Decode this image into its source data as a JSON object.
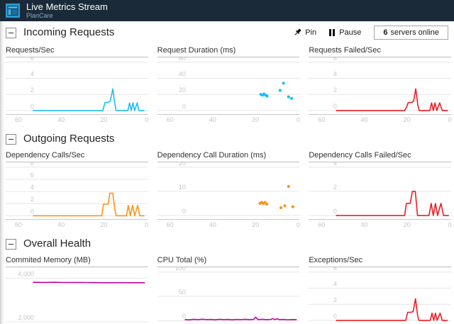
{
  "header": {
    "title": "Live Metrics Stream",
    "subtitle": "PlanCare"
  },
  "toolbar": {
    "pin_label": "Pin",
    "pause_label": "Pause",
    "servers_count": "6",
    "servers_label": "servers online"
  },
  "sections": [
    {
      "title": "Incoming Requests"
    },
    {
      "title": "Outgoing Requests"
    },
    {
      "title": "Overall Health"
    }
  ],
  "colors": {
    "cyan": "#1ebdf0",
    "red": "#eb1c24",
    "orange": "#ff9118",
    "magenta": "#bc00a0",
    "header_bg": "#1b2a38",
    "grid": "#e6e6e6",
    "axis": "#c9c9c9",
    "tick_text": "#c4c4c4"
  },
  "chart_data": [
    {
      "id": "requests-sec",
      "title": "Requests/Sec",
      "type": "line",
      "color": "#1ebdf0",
      "ylim": [
        -0.45,
        6.6
      ],
      "yticks": [
        [
          0,
          "0"
        ],
        [
          2,
          "2"
        ],
        [
          4,
          "4"
        ],
        [
          6,
          "6"
        ]
      ],
      "xticks": [
        60,
        40,
        20,
        0
      ],
      "points": [
        [
          53,
          0
        ],
        [
          20.5,
          0
        ],
        [
          19.5,
          1
        ],
        [
          18,
          1
        ],
        [
          17,
          1.15
        ],
        [
          15.8,
          2.7
        ],
        [
          15,
          1
        ],
        [
          14.3,
          0
        ],
        [
          8.8,
          0
        ],
        [
          8,
          0.95
        ],
        [
          7.2,
          0
        ],
        [
          6.4,
          0.95
        ],
        [
          5.6,
          0
        ],
        [
          4.4,
          0.95
        ],
        [
          3.6,
          0
        ],
        [
          1.2,
          0
        ]
      ]
    },
    {
      "id": "request-duration",
      "title": "Request Duration (ms)",
      "type": "scatter",
      "color": "#1ebdf0",
      "ylim": [
        -4.5,
        66
      ],
      "yticks": [
        [
          0,
          "0"
        ],
        [
          20,
          "20"
        ],
        [
          40,
          "40"
        ],
        [
          60,
          "60"
        ]
      ],
      "xticks": [
        60,
        40,
        20,
        0
      ],
      "points": [
        [
          17.6,
          20
        ],
        [
          16.8,
          19
        ],
        [
          16.1,
          20.5
        ],
        [
          15.3,
          19
        ],
        [
          14.7,
          18
        ],
        [
          8.6,
          25
        ],
        [
          7,
          34
        ],
        [
          4.6,
          17
        ],
        [
          3.2,
          15
        ]
      ]
    },
    {
      "id": "requests-failed-sec",
      "title": "Requests Failed/Sec",
      "type": "line",
      "color": "#eb1c24",
      "ylim": [
        -0.45,
        6.6
      ],
      "yticks": [
        [
          0,
          "0"
        ],
        [
          2,
          "2"
        ],
        [
          4,
          "4"
        ],
        [
          6,
          "6"
        ]
      ],
      "xticks": [
        60,
        40,
        20,
        0
      ],
      "points": [
        [
          53,
          0
        ],
        [
          21,
          0
        ],
        [
          20,
          0.5
        ],
        [
          19.3,
          1
        ],
        [
          17.8,
          1
        ],
        [
          16.8,
          1.15
        ],
        [
          15.8,
          2.7
        ],
        [
          14.8,
          0.6
        ],
        [
          14.2,
          0
        ],
        [
          9.2,
          0
        ],
        [
          8.4,
          0.95
        ],
        [
          7.6,
          0
        ],
        [
          6.8,
          0.95
        ],
        [
          6,
          0
        ],
        [
          4.6,
          0.95
        ],
        [
          3.4,
          0
        ],
        [
          1,
          0
        ]
      ]
    },
    {
      "id": "dependency-calls-sec",
      "title": "Dependency Calls/Sec",
      "type": "line",
      "color": "#ff9118",
      "ylim": [
        -0.55,
        8.8
      ],
      "yticks": [
        [
          0,
          "0"
        ],
        [
          2,
          "2"
        ],
        [
          4,
          "4"
        ],
        [
          6,
          "6"
        ],
        [
          8,
          "8"
        ]
      ],
      "xticks": [
        60,
        40,
        20,
        0
      ],
      "points": [
        [
          53,
          0
        ],
        [
          21,
          0
        ],
        [
          20.2,
          1.9
        ],
        [
          18,
          1.9
        ],
        [
          17.2,
          3.7
        ],
        [
          15.8,
          3.7
        ],
        [
          14.8,
          0.8
        ],
        [
          14.2,
          0
        ],
        [
          9.4,
          0
        ],
        [
          8.6,
          1.7
        ],
        [
          7.6,
          0
        ],
        [
          6.6,
          1.7
        ],
        [
          5.6,
          0
        ],
        [
          4.2,
          1.7
        ],
        [
          3.2,
          0
        ],
        [
          1.2,
          0
        ]
      ]
    },
    {
      "id": "dependency-call-duration",
      "title": "Dependency Call Duration (ms)",
      "type": "scatter",
      "color": "#ff9118",
      "ylim": [
        -1.5,
        22
      ],
      "yticks": [
        [
          0,
          "0"
        ],
        [
          10,
          "10"
        ],
        [
          20,
          "20"
        ]
      ],
      "xticks": [
        60,
        40,
        20,
        0
      ],
      "points": [
        [
          18,
          5
        ],
        [
          17.2,
          5.4
        ],
        [
          16.4,
          5
        ],
        [
          15.6,
          5.4
        ],
        [
          14.8,
          4.7
        ],
        [
          8.2,
          3.2
        ],
        [
          6.4,
          4
        ],
        [
          4.6,
          12
        ],
        [
          2.6,
          3.6
        ]
      ]
    },
    {
      "id": "dependency-calls-failed-sec",
      "title": "Dependency Calls Failed/Sec",
      "type": "line",
      "color": "#eb1c24",
      "ylim": [
        -0.3,
        4.4
      ],
      "yticks": [
        [
          0,
          "0"
        ],
        [
          2,
          "2"
        ],
        [
          4,
          "4"
        ]
      ],
      "xticks": [
        60,
        40,
        20,
        0
      ],
      "points": [
        [
          53,
          0
        ],
        [
          21,
          0
        ],
        [
          20.2,
          1
        ],
        [
          18.4,
          1
        ],
        [
          17.4,
          2
        ],
        [
          16,
          2
        ],
        [
          15,
          0
        ],
        [
          9.6,
          0
        ],
        [
          8.6,
          1
        ],
        [
          7.6,
          0
        ],
        [
          6.6,
          1
        ],
        [
          5.6,
          0
        ],
        [
          4,
          1
        ],
        [
          2.8,
          0
        ],
        [
          0.5,
          0
        ]
      ]
    },
    {
      "id": "committed-memory",
      "title": "Commited Memory (MB)",
      "type": "line",
      "color": "#bc00a0",
      "ylim": [
        1900,
        4500
      ],
      "yticks": [
        [
          2000,
          "2,000"
        ],
        [
          4000,
          "4,000"
        ]
      ],
      "xticks": [
        60,
        40,
        20,
        0
      ],
      "points": [
        [
          53,
          3810
        ],
        [
          48,
          3805
        ],
        [
          43,
          3810
        ],
        [
          38,
          3800
        ],
        [
          33,
          3805
        ],
        [
          28,
          3800
        ],
        [
          23,
          3795
        ],
        [
          18,
          3790
        ],
        [
          13,
          3795
        ],
        [
          8,
          3790
        ],
        [
          3,
          3792
        ],
        [
          1,
          3790
        ]
      ]
    },
    {
      "id": "cpu-total",
      "title": "CPU Total (%)",
      "type": "line",
      "color": "#bc00a0",
      "ylim": [
        -7,
        110
      ],
      "yticks": [
        [
          0,
          "0"
        ],
        [
          50,
          "50"
        ],
        [
          100,
          "100"
        ]
      ],
      "xticks": [
        60,
        40,
        20,
        0
      ],
      "points": [
        [
          53,
          2
        ],
        [
          51,
          1.6
        ],
        [
          49,
          2.6
        ],
        [
          47,
          2
        ],
        [
          45,
          2.8
        ],
        [
          43,
          2
        ],
        [
          41,
          2.4
        ],
        [
          39,
          1.7
        ],
        [
          37,
          2.6
        ],
        [
          35,
          2
        ],
        [
          33,
          2.3
        ],
        [
          31,
          1.7
        ],
        [
          29,
          2.4
        ],
        [
          27,
          2
        ],
        [
          25,
          2.6
        ],
        [
          23,
          2
        ],
        [
          21,
          2.4
        ],
        [
          20,
          7
        ],
        [
          19,
          2.2
        ],
        [
          17,
          2.6
        ],
        [
          15,
          2
        ],
        [
          13,
          2.4
        ],
        [
          12,
          4.2
        ],
        [
          11,
          2
        ],
        [
          10,
          3.8
        ],
        [
          9,
          2
        ],
        [
          7,
          2.4
        ],
        [
          5,
          1.8
        ],
        [
          3,
          2.2
        ],
        [
          1,
          2
        ]
      ]
    },
    {
      "id": "exceptions-sec",
      "title": "Exceptions/Sec",
      "type": "line",
      "color": "#eb1c24",
      "ylim": [
        -0.45,
        6.6
      ],
      "yticks": [
        [
          0,
          "0"
        ],
        [
          2,
          "2"
        ],
        [
          4,
          "4"
        ],
        [
          6,
          "6"
        ]
      ],
      "xticks": [
        60,
        40,
        20,
        0
      ],
      "points": [
        [
          53,
          0
        ],
        [
          20.5,
          0
        ],
        [
          19.6,
          1
        ],
        [
          18,
          1
        ],
        [
          17,
          1.1
        ],
        [
          15.9,
          2.7
        ],
        [
          14.9,
          0.5
        ],
        [
          14.3,
          0
        ],
        [
          9,
          0
        ],
        [
          8.2,
          0.9
        ],
        [
          7.4,
          0
        ],
        [
          6.6,
          0.9
        ],
        [
          5.8,
          0
        ],
        [
          4.4,
          0.9
        ],
        [
          3.4,
          0
        ],
        [
          1,
          0
        ]
      ]
    }
  ]
}
